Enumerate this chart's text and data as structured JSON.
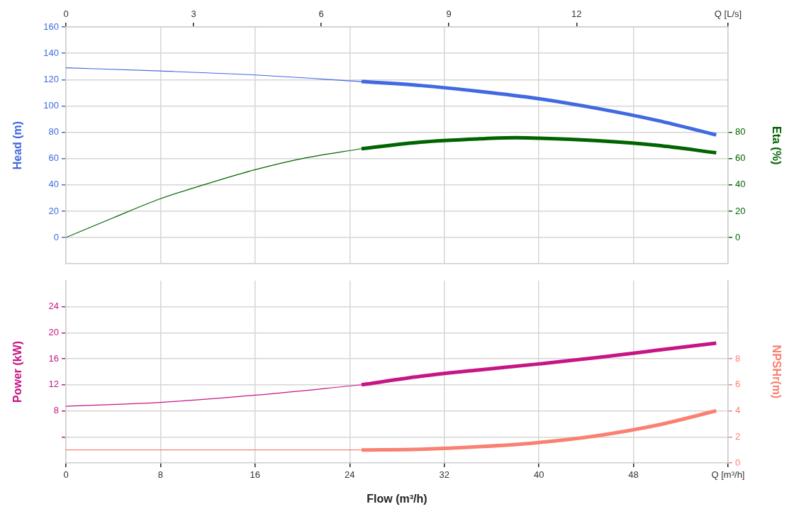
{
  "chart_data": [
    {
      "type": "line",
      "ylabel": "Head (m)",
      "y2label": "Eta (%)",
      "tick_labels": "y",
      "xlim": [
        0,
        56
      ],
      "xticks": [
        0,
        8,
        16,
        24,
        32,
        40,
        48,
        56
      ],
      "x2lim": [
        0,
        15.56
      ],
      "x2ticks": [
        0,
        3,
        6,
        9,
        12,
        {
          "value": 15.56,
          "label": "Q [L/s]"
        }
      ],
      "ylim": [
        -20,
        160
      ],
      "yticks": [
        0,
        20,
        40,
        60,
        80,
        100,
        120,
        140,
        160
      ],
      "y2lim": [
        -20,
        160
      ],
      "y2ticks": [
        0,
        20,
        40,
        60,
        80
      ],
      "grid": true,
      "marker": "none",
      "line_style": "solid",
      "series": [
        {
          "color": "#4169e1",
          "x": [
            0,
            8,
            16,
            25
          ],
          "values": [
            129,
            126.5,
            123.5,
            118.5
          ]
        },
        {
          "color": "#4169e1",
          "x": [
            25,
            30,
            35,
            40,
            45,
            50,
            55
          ],
          "values": [
            118.5,
            115.5,
            111,
            105.5,
            98,
            89,
            78
          ]
        },
        {
          "color": "#006400",
          "axis": "y2",
          "x": [
            0,
            4,
            8,
            12,
            16,
            20,
            25
          ],
          "values": [
            0,
            15,
            29.5,
            41,
            51.5,
            60,
            67.5
          ]
        },
        {
          "color": "#006400",
          "axis": "y2",
          "x": [
            25,
            30,
            35,
            38,
            40,
            45,
            50,
            55
          ],
          "values": [
            67.5,
            72.5,
            75,
            75.8,
            75.5,
            73.5,
            70,
            64.4
          ]
        }
      ]
    },
    {
      "type": "line",
      "xlabel": "Flow (m³/h)",
      "ylabel": "Power (kW)",
      "y2label": "NPSHr(m)",
      "xlim": [
        0,
        56
      ],
      "xticks": [
        0,
        8,
        16,
        24,
        32,
        40,
        48,
        {
          "value": 56,
          "label": "Q [m³/h]"
        }
      ],
      "ylim": [
        0,
        28
      ],
      "yticks": [
        {
          "value": 4,
          "label": null
        },
        8,
        12,
        16,
        20,
        24
      ],
      "y2lim": [
        0,
        14
      ],
      "y2ticks": [
        0,
        2,
        4,
        6,
        8
      ],
      "grid": true,
      "marker": "none",
      "line_style": "solid",
      "series": [
        {
          "color": "#c71585",
          "x": [
            0,
            8,
            16,
            25
          ],
          "values": [
            8.7,
            9.3,
            10.4,
            12
          ]
        },
        {
          "color": "#c71585",
          "x": [
            25,
            30,
            35,
            40,
            45,
            50,
            55
          ],
          "values": [
            12,
            13.3,
            14.3,
            15.2,
            16.2,
            17.3,
            18.4
          ]
        },
        {
          "color": "#fa8072",
          "axis": "y2",
          "x": [
            0,
            25
          ],
          "values": [
            1,
            1
          ]
        },
        {
          "color": "#fa8072",
          "axis": "y2",
          "x": [
            25,
            30,
            35,
            40,
            45,
            50,
            55
          ],
          "values": [
            1,
            1.05,
            1.25,
            1.57,
            2.1,
            2.9,
            4
          ]
        }
      ]
    }
  ]
}
